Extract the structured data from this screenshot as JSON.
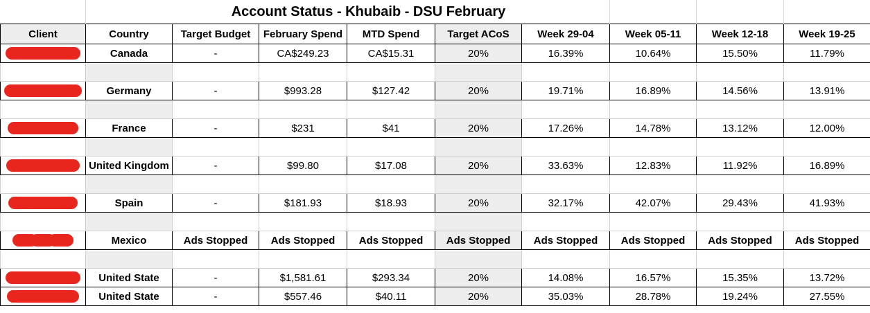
{
  "title": "Account Status - Khubaib - DSU February",
  "headers": [
    "Client",
    "Country",
    "Target Budget",
    "February Spend",
    "MTD Spend",
    "Target ACoS",
    "Week 29-04",
    "Week 05-11",
    "Week 12-18",
    "Week 19-25"
  ],
  "rows": [
    {
      "country": "Canada",
      "budget": "-",
      "feb": "CA$249.23",
      "mtd": "CA$15.31",
      "acos": "20%",
      "w1": "16.39%",
      "w2": "10.64%",
      "w3": "15.50%",
      "w4": "11.79%"
    },
    {
      "country": "Germany",
      "budget": "-",
      "feb": "$993.28",
      "mtd": "$127.42",
      "acos": "20%",
      "w1": "19.71%",
      "w2": "16.89%",
      "w3": "14.56%",
      "w4": "13.91%"
    },
    {
      "country": "France",
      "budget": "-",
      "feb": "$231",
      "mtd": "$41",
      "acos": "20%",
      "w1": "17.26%",
      "w2": "14.78%",
      "w3": "13.12%",
      "w4": "12.00%"
    },
    {
      "country": "United Kingdom",
      "budget": "-",
      "feb": "$99.80",
      "mtd": "$17.08",
      "acos": "20%",
      "w1": "33.63%",
      "w2": "12.83%",
      "w3": "11.92%",
      "w4": "16.89%"
    },
    {
      "country": "Spain",
      "budget": "-",
      "feb": "$181.93",
      "mtd": "$18.93",
      "acos": "20%",
      "w1": "32.17%",
      "w2": "42.07%",
      "w3": "29.43%",
      "w4": "41.93%"
    },
    {
      "country": "Mexico",
      "budget": "Ads Stopped",
      "feb": "Ads Stopped",
      "mtd": "Ads Stopped",
      "acos": "Ads Stopped",
      "w1": "Ads Stopped",
      "w2": "Ads Stopped",
      "w3": "Ads Stopped",
      "w4": "Ads Stopped"
    },
    {
      "country": "United State",
      "budget": "-",
      "feb": "$1,581.61",
      "mtd": "$293.34",
      "acos": "20%",
      "w1": "14.08%",
      "w2": "16.57%",
      "w3": "15.35%",
      "w4": "13.72%"
    },
    {
      "country": "United State",
      "budget": "-",
      "feb": "$557.46",
      "mtd": "$40.11",
      "acos": "20%",
      "w1": "35.03%",
      "w2": "28.78%",
      "w3": "19.24%",
      "w4": "27.55%"
    }
  ],
  "colors": {
    "redaction": "#e8261e",
    "shaded_column": "#ededed"
  }
}
